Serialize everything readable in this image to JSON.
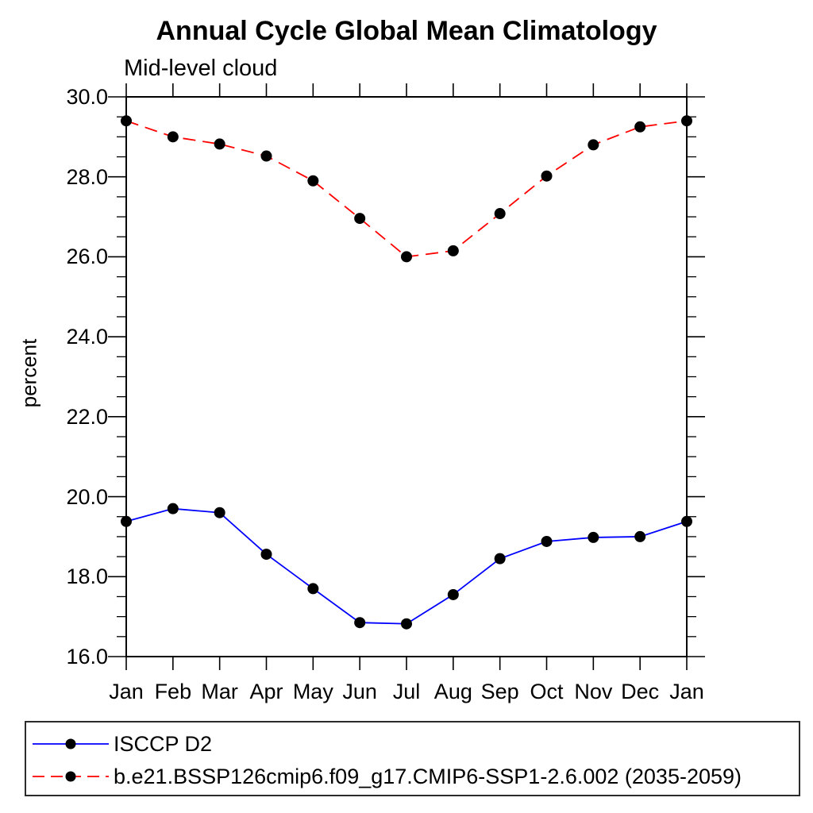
{
  "page": {
    "background": "#ffffff",
    "text_color": "#000000"
  },
  "chart_data": {
    "type": "line",
    "title": "Annual Cycle Global Mean Climatology",
    "subtitle": "Mid-level cloud",
    "xlabel": "",
    "ylabel": "percent",
    "categories": [
      "Jan",
      "Feb",
      "Mar",
      "Apr",
      "May",
      "Jun",
      "Jul",
      "Aug",
      "Sep",
      "Oct",
      "Nov",
      "Dec",
      "Jan"
    ],
    "ylim": [
      16.0,
      30.0
    ],
    "y_major_ticks": [
      16,
      18,
      20,
      22,
      24,
      26,
      28,
      30
    ],
    "y_tick_labels": [
      "16.0",
      "18.0",
      "20.0",
      "22.0",
      "24.0",
      "26.0",
      "28.0",
      "30.0"
    ],
    "y_minor_step": 0.5,
    "grid": false,
    "legend_position": "bottom-left-box",
    "axis_color": "#000000",
    "marker": "filled-circle",
    "marker_color": "#000000",
    "series": [
      {
        "name": "ISCCP D2",
        "color": "#0000ff",
        "style": "solid",
        "marker_color": "#000000",
        "values": [
          19.38,
          19.7,
          19.6,
          18.56,
          17.7,
          16.85,
          16.82,
          17.55,
          18.45,
          18.88,
          18.98,
          19.0,
          19.38
        ]
      },
      {
        "name": "b.e21.BSSP126cmip6.f09_g17.CMIP6-SSP1-2.6.002 (2035-2059)",
        "color": "#ff0000",
        "style": "dashed",
        "marker_color": "#000000",
        "values": [
          29.4,
          29.0,
          28.82,
          28.52,
          27.9,
          26.96,
          26.0,
          26.15,
          27.08,
          28.02,
          28.8,
          29.25,
          29.4
        ]
      }
    ]
  }
}
